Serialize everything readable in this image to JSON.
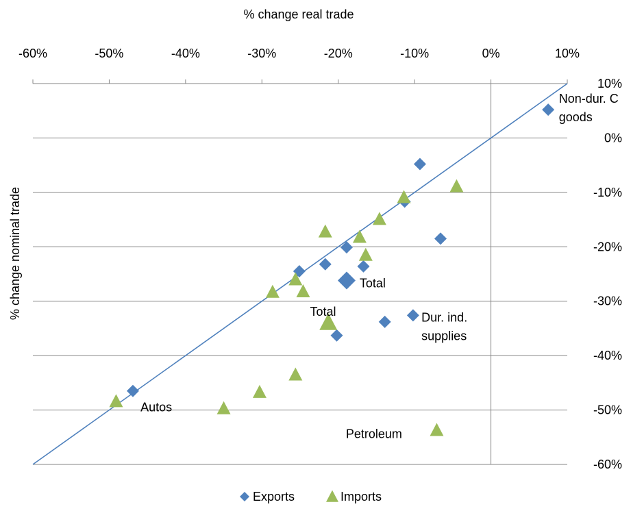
{
  "chart_data": {
    "type": "scatter",
    "title": "",
    "xlabel": "% change real trade",
    "ylabel": "% change nominal trade",
    "xlim": [
      -0.6,
      0.1
    ],
    "ylim": [
      -0.6,
      0.1
    ],
    "x_ticks": [
      {
        "value": -0.6,
        "label": "-60%"
      },
      {
        "value": -0.5,
        "label": "-50%"
      },
      {
        "value": -0.4,
        "label": "-40%"
      },
      {
        "value": -0.3,
        "label": "-30%"
      },
      {
        "value": -0.2,
        "label": "-20%"
      },
      {
        "value": -0.1,
        "label": "-10%"
      },
      {
        "value": 0.0,
        "label": "0%"
      },
      {
        "value": 0.1,
        "label": "10%"
      }
    ],
    "y_ticks": [
      {
        "value": 0.1,
        "label": "10%"
      },
      {
        "value": 0.0,
        "label": "0%"
      },
      {
        "value": -0.1,
        "label": "-10%"
      },
      {
        "value": -0.2,
        "label": "-20%"
      },
      {
        "value": -0.3,
        "label": "-30%"
      },
      {
        "value": -0.4,
        "label": "-40%"
      },
      {
        "value": -0.5,
        "label": "-50%"
      },
      {
        "value": -0.6,
        "label": "-60%"
      }
    ],
    "x_axis_position": "top",
    "y_axis_position": "right",
    "grid": "horizontal",
    "reference_line": {
      "from": [
        -0.6,
        -0.6
      ],
      "to": [
        0.1,
        0.1
      ],
      "color": "#4F81BD"
    },
    "legend_position": "bottom",
    "series": [
      {
        "name": "Exports",
        "marker": "diamond",
        "color": "#4F81BD",
        "points": [
          {
            "x": 0.075,
            "y": 0.052
          },
          {
            "x": -0.093,
            "y": -0.048
          },
          {
            "x": -0.066,
            "y": -0.185
          },
          {
            "x": -0.113,
            "y": -0.117
          },
          {
            "x": -0.189,
            "y": -0.201
          },
          {
            "x": -0.217,
            "y": -0.232
          },
          {
            "x": -0.251,
            "y": -0.245
          },
          {
            "x": -0.167,
            "y": -0.236
          },
          {
            "x": -0.189,
            "y": -0.262,
            "size": "large"
          },
          {
            "x": -0.102,
            "y": -0.326
          },
          {
            "x": -0.139,
            "y": -0.338
          },
          {
            "x": -0.202,
            "y": -0.363
          },
          {
            "x": -0.469,
            "y": -0.465
          }
        ]
      },
      {
        "name": "Imports",
        "marker": "triangle",
        "color": "#9BBB59",
        "points": [
          {
            "x": -0.045,
            "y": -0.089
          },
          {
            "x": -0.114,
            "y": -0.109
          },
          {
            "x": -0.146,
            "y": -0.149
          },
          {
            "x": -0.217,
            "y": -0.172
          },
          {
            "x": -0.172,
            "y": -0.182
          },
          {
            "x": -0.164,
            "y": -0.215
          },
          {
            "x": -0.256,
            "y": -0.26
          },
          {
            "x": -0.246,
            "y": -0.282
          },
          {
            "x": -0.286,
            "y": -0.283
          },
          {
            "x": -0.213,
            "y": -0.339,
            "size": "large"
          },
          {
            "x": -0.256,
            "y": -0.435
          },
          {
            "x": -0.303,
            "y": -0.467
          },
          {
            "x": -0.35,
            "y": -0.497
          },
          {
            "x": -0.491,
            "y": -0.484
          },
          {
            "x": -0.071,
            "y": -0.537
          }
        ]
      }
    ],
    "annotations": [
      {
        "text": "Non-dur. C",
        "x": 0.089,
        "y": 0.072
      },
      {
        "text": "goods",
        "x": 0.089,
        "y": 0.038
      },
      {
        "text": "Total",
        "x": -0.172,
        "y": -0.267
      },
      {
        "text": "Total",
        "x": -0.237,
        "y": -0.319
      },
      {
        "text": "Dur. ind.",
        "x": -0.091,
        "y": -0.33
      },
      {
        "text": "supplies",
        "x": -0.091,
        "y": -0.364
      },
      {
        "text": "Autos",
        "x": -0.459,
        "y": -0.495
      },
      {
        "text": "Petroleum",
        "x": -0.19,
        "y": -0.544
      }
    ]
  }
}
